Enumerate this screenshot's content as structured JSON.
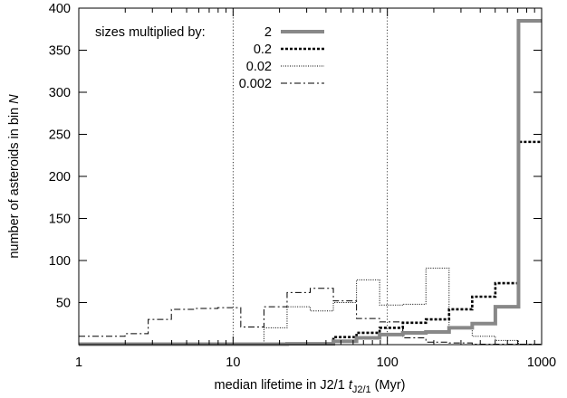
{
  "chart_data": {
    "type": "line",
    "plot_style": "step-histogram",
    "xlabel_prefix": "median lifetime in J2/1 ",
    "xlabel_var": "t",
    "xlabel_sub": "J2/1",
    "xlabel_suffix": " (Myr)",
    "ylabel_prefix": "number of asteroids in bin ",
    "ylabel_var": "N",
    "x_scale": "log",
    "xlim": [
      1,
      1000
    ],
    "ylim": [
      0,
      400
    ],
    "x_ticks": [
      1,
      10,
      100,
      1000
    ],
    "x_tick_labels": [
      "1",
      "10",
      "100",
      "1000"
    ],
    "y_ticks": [
      50,
      100,
      150,
      200,
      250,
      300,
      350,
      400
    ],
    "y_tick_labels": [
      "50",
      "100",
      "150",
      "200",
      "250",
      "300",
      "350",
      "400"
    ],
    "vertical_reference_lines": [
      10,
      100
    ],
    "legend_title": "sizes multiplied by:",
    "legend_position": "top-left",
    "bin_edges": [
      1,
      1.413,
      1.995,
      2.818,
      3.981,
      5.623,
      7.943,
      11.22,
      15.85,
      22.39,
      31.62,
      44.67,
      63.1,
      89.13,
      125.9,
      177.8,
      251.2,
      354.8,
      501.2,
      707.9,
      1000
    ],
    "series": [
      {
        "name": "2",
        "color": "#888888",
        "counts": [
          0,
          0,
          0,
          0,
          0,
          0,
          0,
          0,
          0,
          1,
          1,
          4,
          8,
          12,
          14,
          15,
          20,
          25,
          45,
          385
        ]
      },
      {
        "name": "0.2",
        "color": "#000000",
        "counts": [
          0,
          0,
          0,
          0,
          0,
          0,
          0,
          0,
          1,
          1,
          1,
          9,
          14,
          20,
          26,
          30,
          42,
          57,
          73,
          241
        ]
      },
      {
        "name": "0.02",
        "color": "#000000",
        "counts": [
          0,
          0,
          0,
          0,
          0,
          0,
          0,
          0,
          20,
          45,
          40,
          50,
          77,
          47,
          48,
          91,
          20,
          10,
          5,
          0
        ]
      },
      {
        "name": "0.002",
        "color": "#000000",
        "counts": [
          10,
          10,
          13,
          30,
          42,
          43,
          44,
          21,
          45,
          62,
          67,
          52,
          31,
          27,
          8,
          3,
          2,
          0,
          0,
          0
        ]
      }
    ]
  }
}
